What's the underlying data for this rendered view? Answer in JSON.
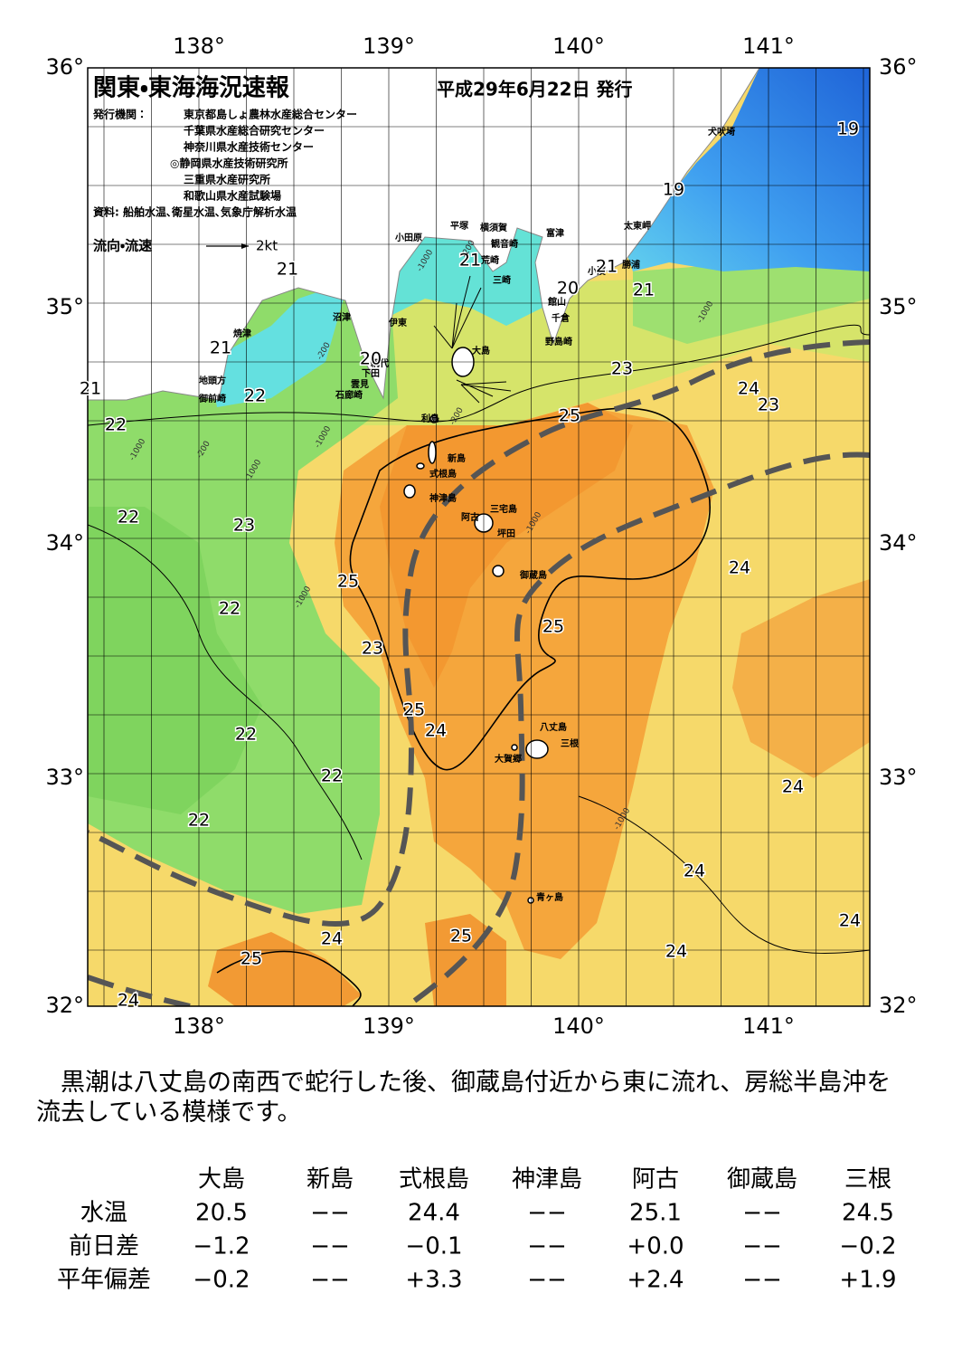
{
  "header": {
    "title": "関東・東海海況速報",
    "date": "平成29年6月22日 発行",
    "publisher_label": "発行機関：",
    "publishers": [
      "東京都島しょ農林水産総合センター",
      "千葉県水産総合研究センター",
      "神奈川県水産技術センター",
      "◎静岡県水産技術研究所",
      "三重県水産研究所",
      "和歌山県水産試験場"
    ],
    "sources": "資料: 船舶水温､衛星水温､気象庁解析水温",
    "legend_label": "流向・流速",
    "legend_scale": "2kt"
  },
  "map": {
    "lon_labels": [
      "138°",
      "139°",
      "140°",
      "141°"
    ],
    "lat_labels": [
      "36°",
      "35°",
      "34°",
      "33°",
      "32°"
    ],
    "places": [
      "犬吠埼",
      "太東岬",
      "勝浦",
      "小湊",
      "富津",
      "館山",
      "千倉",
      "野島崎",
      "横須賀",
      "平塚",
      "観音崎",
      "荒崎",
      "三崎",
      "小田原",
      "沼津",
      "伊東",
      "焼津",
      "大島",
      "網代",
      "下田",
      "雲見",
      "石廊崎",
      "地頭方",
      "御前崎",
      "利島",
      "新島",
      "式根島",
      "神津島",
      "三宅島",
      "阿古",
      "坪田",
      "御蔵島",
      "八丈島",
      "三根",
      "大賀郷",
      "青ヶ島"
    ],
    "isotherm_labels": [
      "19",
      "19",
      "21",
      "21",
      "21",
      "21",
      "20",
      "21",
      "20",
      "22",
      "21",
      "22",
      "23",
      "24",
      "23",
      "25",
      "22",
      "23",
      "24",
      "25",
      "22",
      "25",
      "23",
      "25",
      "24",
      "22",
      "22",
      "24",
      "22",
      "24",
      "24",
      "25",
      "24",
      "25",
      "24",
      "24"
    ],
    "depth_labels": [
      "-200",
      "-1000",
      "-200",
      "-1000",
      "-200",
      "-1000",
      "-1000",
      "-200",
      "-1000",
      "-1000",
      "-1000",
      "-1000"
    ]
  },
  "summary": "黒潮は八丈島の南西で蛇行した後、御蔵島付近から東に流れ、房総半島沖を流去している模様です。",
  "table": {
    "columns": [
      "大島",
      "新島",
      "式根島",
      "神津島",
      "阿古",
      "御蔵島",
      "三根"
    ],
    "rows": [
      [
        "水温",
        "20.5",
        "−−",
        "24.4",
        "−−",
        "25.1",
        "−−",
        "24.5"
      ],
      [
        "前日差",
        "−1.2",
        "−−",
        "−0.1",
        "−−",
        "+0.0",
        "−−",
        "−0.2"
      ],
      [
        "平年偏差",
        "−0.2",
        "−−",
        "+3.3",
        "−−",
        "+2.4",
        "−−",
        "+1.9"
      ]
    ]
  }
}
